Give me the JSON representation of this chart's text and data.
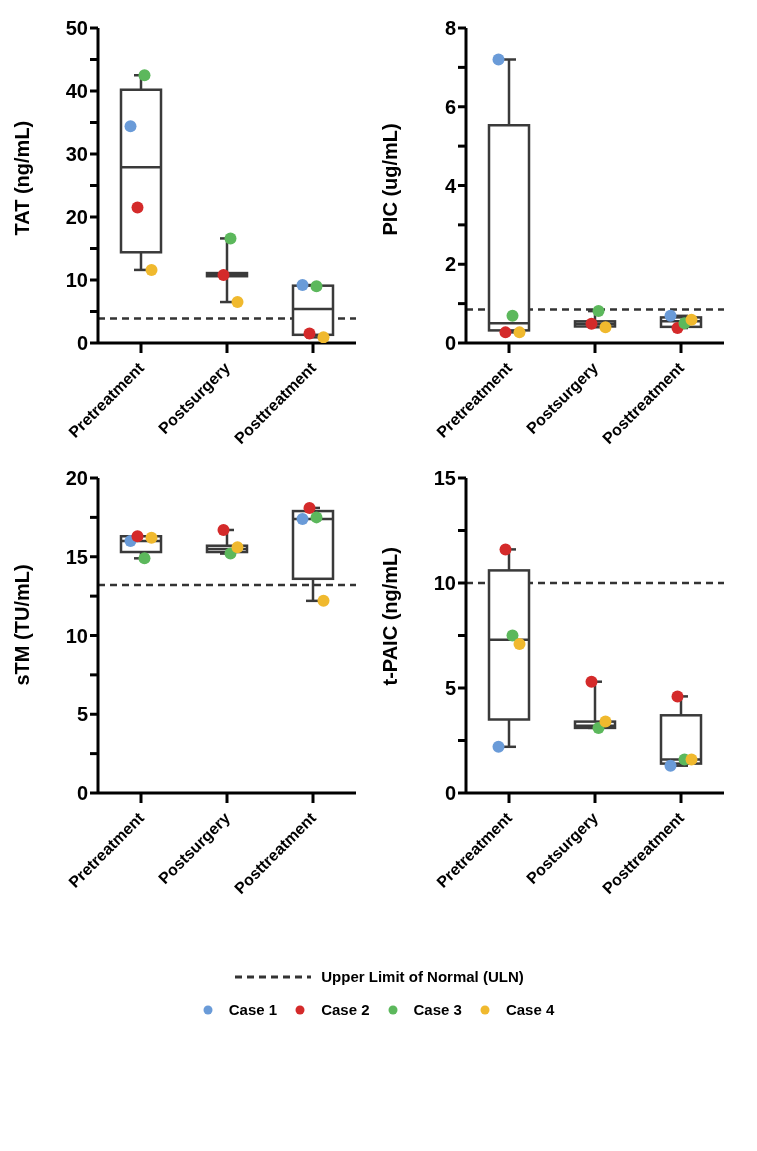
{
  "chart_data": [
    {
      "type": "box",
      "ylabel": "TAT (ng/mL)",
      "categories": [
        "Pretreatment",
        "Postsurgery",
        "Posttreatment"
      ],
      "ylim": [
        0,
        50
      ],
      "yticks": [
        0,
        {
          "value": 5,
          "label": null
        },
        10,
        {
          "value": 15,
          "label": null
        },
        20,
        {
          "value": 25,
          "label": null
        },
        30,
        {
          "value": 35,
          "label": null
        },
        40,
        {
          "value": 45,
          "label": null
        },
        50
      ],
      "grid": false,
      "marker": "circle",
      "legend": "bottom",
      "boxes": [
        {
          "low": 11.6,
          "q1": 14.4,
          "median": 27.9,
          "q3": 40.2,
          "high": 42.5
        },
        {
          "low": 6.5,
          "q1": 10.6,
          "median": 10.8,
          "q3": 11.1,
          "high": 16.6
        },
        {
          "low": 0.9,
          "q1": 1.3,
          "median": 5.4,
          "q3": 9.1,
          "high": 9.2
        }
      ],
      "ref_lines": [
        {
          "axis": "y",
          "value": 3.9,
          "line_style": "dashed",
          "color": "#333333"
        }
      ],
      "annotations": [
        "Upper Limit of Normal (ULN)"
      ],
      "series": [
        {
          "type": "scatter",
          "name": "Case 1",
          "color": "#6a9bd8",
          "values": [
            34.4,
            null,
            9.2
          ]
        },
        {
          "type": "scatter",
          "name": "Case 2",
          "color": "#d42a2a",
          "values": [
            21.5,
            10.8,
            1.5
          ]
        },
        {
          "type": "scatter",
          "name": "Case 3",
          "color": "#5cb85c",
          "values": [
            42.5,
            16.6,
            9.0
          ]
        },
        {
          "type": "scatter",
          "name": "Case 4",
          "color": "#f0b92e",
          "values": [
            11.6,
            6.5,
            0.9
          ]
        }
      ]
    },
    {
      "type": "box",
      "ylabel": "PIC (ug/mL)",
      "categories": [
        "Pretreatment",
        "Postsurgery",
        "Posttreatment"
      ],
      "ylim": [
        0,
        8
      ],
      "yticks": [
        0,
        {
          "value": 1,
          "label": null
        },
        2,
        {
          "value": 3,
          "label": null
        },
        4,
        {
          "value": 5,
          "label": null
        },
        6,
        {
          "value": 7,
          "label": null
        },
        8
      ],
      "grid": false,
      "marker": "circle",
      "boxes": [
        {
          "low": 0.27,
          "q1": 0.32,
          "median": 0.5,
          "q3": 5.53,
          "high": 7.2
        },
        {
          "low": 0.4,
          "q1": 0.42,
          "median": 0.49,
          "q3": 0.55,
          "high": 0.81
        },
        {
          "low": 0.38,
          "q1": 0.41,
          "median": 0.55,
          "q3": 0.65,
          "high": 0.69
        }
      ],
      "ref_lines": [
        {
          "axis": "y",
          "value": 0.85,
          "line_style": "dashed",
          "color": "#333333"
        }
      ],
      "series": [
        {
          "type": "scatter",
          "color": "#6a9bd8",
          "values": [
            7.2,
            null,
            0.69
          ]
        },
        {
          "type": "scatter",
          "color": "#d42a2a",
          "values": [
            0.27,
            0.49,
            0.38
          ]
        },
        {
          "type": "scatter",
          "color": "#5cb85c",
          "values": [
            0.69,
            0.81,
            0.5
          ]
        },
        {
          "type": "scatter",
          "color": "#f0b92e",
          "values": [
            0.27,
            0.4,
            0.59
          ]
        }
      ]
    },
    {
      "type": "box",
      "ylabel": "sTM (TU/mL)",
      "categories": [
        "Pretreatment",
        "Postsurgery",
        "Posttreatment"
      ],
      "ylim": [
        0,
        20
      ],
      "yticks": [
        0,
        {
          "value": 2.5,
          "label": null
        },
        5,
        {
          "value": 7.5,
          "label": null
        },
        10,
        {
          "value": 12.5,
          "label": null
        },
        15,
        {
          "value": 17.5,
          "label": null
        },
        20
      ],
      "grid": false,
      "marker": "circle",
      "boxes": [
        {
          "low": 14.9,
          "q1": 15.3,
          "median": 16.0,
          "q3": 16.3,
          "high": 16.3
        },
        {
          "low": 15.2,
          "q1": 15.3,
          "median": 15.5,
          "q3": 15.7,
          "high": 16.7
        },
        {
          "low": 12.2,
          "q1": 13.6,
          "median": 17.4,
          "q3": 17.9,
          "high": 18.1
        }
      ],
      "ref_lines": [
        {
          "axis": "y",
          "value": 13.2,
          "line_style": "dashed",
          "color": "#333333"
        }
      ],
      "series": [
        {
          "type": "scatter",
          "color": "#6a9bd8",
          "values": [
            16.0,
            null,
            17.4
          ]
        },
        {
          "type": "scatter",
          "color": "#d42a2a",
          "values": [
            16.3,
            16.7,
            18.1
          ]
        },
        {
          "type": "scatter",
          "color": "#5cb85c",
          "values": [
            14.9,
            15.2,
            17.5
          ]
        },
        {
          "type": "scatter",
          "color": "#f0b92e",
          "values": [
            16.2,
            15.6,
            12.2
          ]
        }
      ]
    },
    {
      "type": "box",
      "ylabel": "t-PAIC (ng/mL)",
      "categories": [
        "Pretreatment",
        "Postsurgery",
        "Posttreatment"
      ],
      "ylim": [
        0,
        15
      ],
      "yticks": [
        0,
        {
          "value": 2.5,
          "label": null
        },
        5,
        {
          "value": 7.5,
          "label": null
        },
        10,
        {
          "value": 12.5,
          "label": null
        },
        15
      ],
      "grid": false,
      "marker": "circle",
      "boxes": [
        {
          "low": 2.2,
          "q1": 3.5,
          "median": 7.3,
          "q3": 10.6,
          "high": 11.6
        },
        {
          "low": 3.1,
          "q1": 3.1,
          "median": 3.2,
          "q3": 3.4,
          "high": 5.3
        },
        {
          "low": 1.3,
          "q1": 1.4,
          "median": 1.6,
          "q3": 3.7,
          "high": 4.6
        }
      ],
      "ref_lines": [
        {
          "axis": "y",
          "value": 10,
          "line_style": "dashed",
          "color": "#333333"
        }
      ],
      "series": [
        {
          "type": "scatter",
          "color": "#6a9bd8",
          "values": [
            2.2,
            null,
            1.3
          ]
        },
        {
          "type": "scatter",
          "color": "#d42a2a",
          "values": [
            11.6,
            5.3,
            4.6
          ]
        },
        {
          "type": "scatter",
          "color": "#5cb85c",
          "values": [
            7.5,
            3.1,
            1.6
          ]
        },
        {
          "type": "scatter",
          "color": "#f0b92e",
          "values": [
            7.1,
            3.4,
            1.6
          ]
        }
      ]
    }
  ]
}
